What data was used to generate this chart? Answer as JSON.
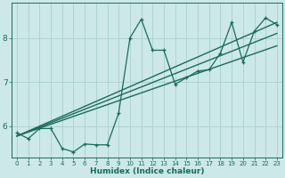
{
  "xlabel": "Humidex (Indice chaleur)",
  "background_color": "#cce8e8",
  "line_color": "#1a6b5a",
  "grid_color": "#aad0d0",
  "x_data": [
    0,
    1,
    2,
    3,
    4,
    5,
    6,
    7,
    8,
    9,
    10,
    11,
    12,
    13,
    14,
    15,
    16,
    17,
    18,
    19,
    20,
    21,
    22,
    23
  ],
  "y_data": [
    5.85,
    5.72,
    5.95,
    5.95,
    5.5,
    5.42,
    5.6,
    5.58,
    5.58,
    6.3,
    8.0,
    8.42,
    7.72,
    7.72,
    6.95,
    7.1,
    7.25,
    7.28,
    7.65,
    8.35,
    7.45,
    8.15,
    8.45,
    8.3
  ],
  "ylim": [
    5.3,
    8.8
  ],
  "xlim": [
    -0.5,
    23.5
  ],
  "yticks": [
    6,
    7,
    8
  ],
  "xticks": [
    0,
    1,
    2,
    3,
    4,
    5,
    6,
    7,
    8,
    9,
    10,
    11,
    12,
    13,
    14,
    15,
    16,
    17,
    18,
    19,
    20,
    21,
    22,
    23
  ],
  "trend_lines": [
    {
      "x0": 0.0,
      "y0": 5.78,
      "x1": 23.0,
      "y1": 8.35
    },
    {
      "x0": 0.0,
      "y0": 5.78,
      "x1": 23.0,
      "y1": 8.1
    },
    {
      "x0": 0.0,
      "y0": 5.78,
      "x1": 23.0,
      "y1": 7.82
    }
  ]
}
